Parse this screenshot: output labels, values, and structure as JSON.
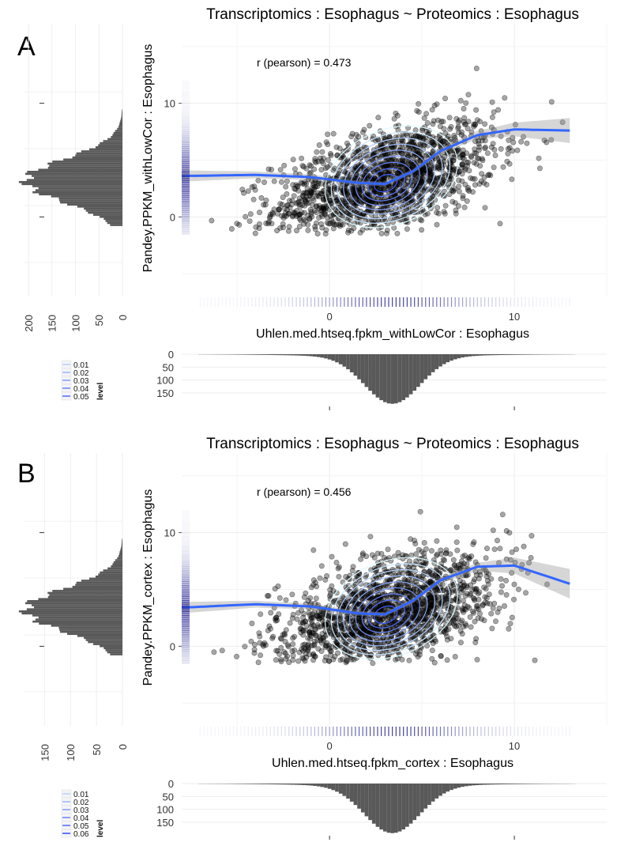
{
  "chart_data": [
    {
      "type": "scatter",
      "panel_label": "A",
      "title": "Transcriptomics : Esophagus ~ Proteomics : Esophagus",
      "xlabel": "Uhlen.med.htseq.fpkm_withLowCor : Esophagus",
      "ylabel": "Pandey.PPKM_withLowCor : Esophagus",
      "annotation": "r (pearson) = 0.473",
      "xlim": [
        -8,
        15
      ],
      "ylim": [
        -7,
        17
      ],
      "x_ticks": [
        0,
        10
      ],
      "y_ticks": [
        0,
        10
      ],
      "smooth": {
        "x": [
          -8,
          -4,
          -1,
          1.5,
          3,
          4.5,
          6,
          8,
          10,
          13
        ],
        "y": [
          3.6,
          3.7,
          3.5,
          3.0,
          2.9,
          4.0,
          5.8,
          7.2,
          7.7,
          7.6
        ]
      },
      "smooth_band_halfwidth": [
        0.5,
        0.3,
        0.25,
        0.2,
        0.2,
        0.2,
        0.25,
        0.35,
        0.6,
        1.1
      ],
      "cloud": {
        "center": [
          3,
          3.2
        ],
        "spread": [
          3,
          2.6
        ],
        "corr": 0.5
      },
      "marginal_top_ticks": [
        0,
        50,
        100,
        150
      ],
      "marginal_left_ticks": [
        200,
        150,
        100,
        50,
        0
      ],
      "marginal_left_max": 210,
      "marginal_top_max": 190,
      "legend": {
        "title": "level",
        "levels": [
          "0.01",
          "0.02",
          "0.03",
          "0.04",
          "0.05"
        ]
      }
    },
    {
      "type": "scatter",
      "panel_label": "B",
      "title": "Transcriptomics : Esophagus ~ Proteomics : Esophagus",
      "xlabel": "Uhlen.med.htseq.fpkm_cortex : Esophagus",
      "ylabel": "Pandey.PPKM_cortex : Esophagus",
      "annotation": "r (pearson) = 0.456",
      "xlim": [
        -8,
        15
      ],
      "ylim": [
        -7,
        17
      ],
      "x_ticks": [
        0,
        10
      ],
      "y_ticks": [
        0,
        10
      ],
      "smooth": {
        "x": [
          -8,
          -4,
          -1,
          1.5,
          3,
          4.5,
          6,
          8,
          10,
          13
        ],
        "y": [
          3.4,
          3.7,
          3.5,
          2.9,
          2.8,
          4.0,
          5.8,
          7.0,
          7.1,
          5.5
        ]
      },
      "smooth_band_halfwidth": [
        0.5,
        0.3,
        0.25,
        0.2,
        0.2,
        0.2,
        0.25,
        0.35,
        0.7,
        1.3
      ],
      "cloud": {
        "center": [
          3,
          3.0
        ],
        "spread": [
          3,
          2.6
        ],
        "corr": 0.48
      },
      "marginal_top_ticks": [
        0,
        50,
        100,
        150
      ],
      "marginal_left_ticks": [
        150,
        100,
        50,
        0
      ],
      "marginal_left_max": 190,
      "marginal_top_max": 190,
      "legend": {
        "title": "level",
        "levels": [
          "0.01",
          "0.02",
          "0.03",
          "0.04",
          "0.05",
          "0.06"
        ]
      }
    }
  ]
}
